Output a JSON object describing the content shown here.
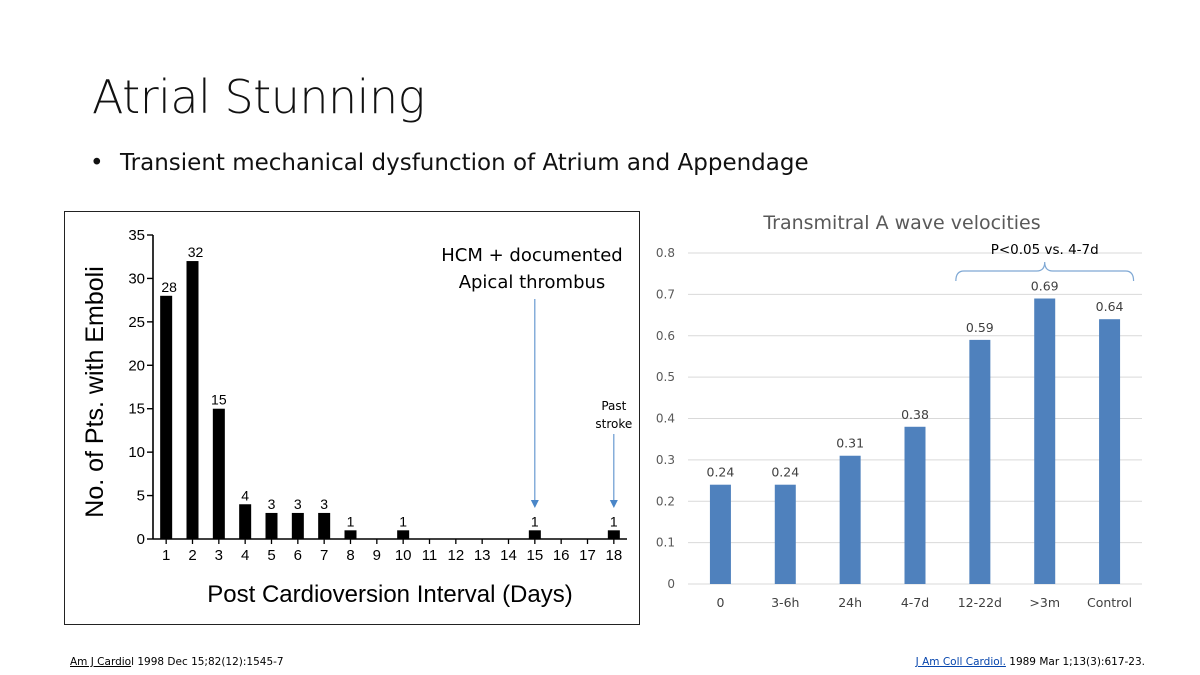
{
  "slide": {
    "title": "Atrial Stunning",
    "bullet": "Transient mechanical dysfunction of Atrium and Appendage"
  },
  "references": {
    "left_link": "Am J Cardio",
    "left_rest": "l 1998 Dec 15;82(12):1545-7",
    "right_link": "J Am Coll Cardiol.",
    "right_rest": " 1989 Mar 1;13(3):617-23."
  },
  "chart_data": [
    {
      "type": "bar",
      "title": "",
      "xlabel": "Post Cardioversion Interval (Days)",
      "ylabel": "No. of Pts. with Emboli",
      "ylim": [
        0,
        35
      ],
      "yticks": [
        0,
        5,
        10,
        15,
        20,
        25,
        30,
        35
      ],
      "categories": [
        "1",
        "2",
        "3",
        "4",
        "5",
        "6",
        "7",
        "8",
        "9",
        "10",
        "11",
        "12",
        "13",
        "14",
        "15",
        "16",
        "17",
        "18"
      ],
      "values": [
        28,
        32,
        15,
        4,
        3,
        3,
        3,
        1,
        0,
        1,
        0,
        0,
        0,
        0,
        1,
        0,
        0,
        1
      ],
      "bar_color": "#000000",
      "grid": false,
      "annotations": [
        {
          "text_lines": [
            "HCM + documented",
            "Apical thrombus"
          ],
          "target_category": "15"
        },
        {
          "text_lines": [
            "Past",
            "stroke"
          ],
          "target_category": "18"
        }
      ],
      "arrow_color": "#4a86c8"
    },
    {
      "type": "bar",
      "title": "Transmitral A wave velocities",
      "xlabel": "",
      "ylabel": "",
      "ylim": [
        0,
        0.8
      ],
      "yticks": [
        0,
        0.1,
        0.2,
        0.3,
        0.4,
        0.5,
        0.6,
        0.7,
        0.8
      ],
      "ytick_labels": [
        "0",
        "0.1",
        "0.2",
        "0.3",
        "0.4",
        "0.5",
        "0.6",
        "0.7",
        "0.8"
      ],
      "categories": [
        "0",
        "3-6h",
        "24h",
        "4-7d",
        "12-22d",
        ">3m",
        "Control"
      ],
      "values": [
        0.24,
        0.24,
        0.31,
        0.38,
        0.59,
        0.69,
        0.64
      ],
      "data_labels": [
        "0.24",
        "0.24",
        "0.31",
        "0.38",
        "0.59",
        "0.69",
        "0.64"
      ],
      "bar_color": "#4f81bd",
      "grid": true,
      "annotations": [
        {
          "text": "P<0.05 vs. 4-7d",
          "bracket_from": "12-22d",
          "bracket_to": "Control"
        }
      ]
    }
  ]
}
